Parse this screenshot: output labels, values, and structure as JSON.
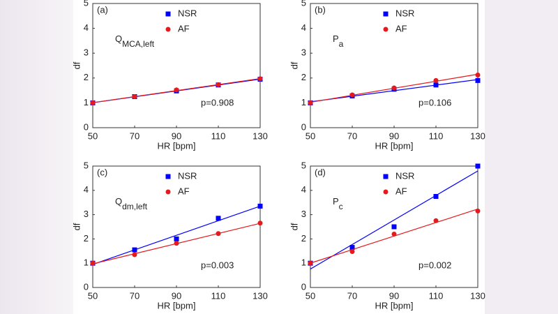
{
  "chart_data": [
    {
      "type": "scatter",
      "panel": "(a)",
      "label": "Q",
      "label_sub": "MCA,left",
      "annotation": "p=0.908",
      "x_label": "HR [bpm]",
      "y_label": "df",
      "x": [
        50,
        70,
        90,
        110,
        130
      ],
      "xlim": [
        50,
        130
      ],
      "xticks": [
        50,
        70,
        90,
        110,
        130
      ],
      "ylim": [
        0,
        5
      ],
      "yticks": [
        0,
        1,
        2,
        3,
        4,
        5
      ],
      "series": [
        {
          "name": "NSR",
          "color": "#0000ff",
          "marker": "square",
          "values": [
            1.0,
            1.25,
            1.48,
            1.72,
            1.95
          ]
        },
        {
          "name": "AF",
          "color": "#e41a1c",
          "marker": "circle",
          "values": [
            1.0,
            1.25,
            1.52,
            1.73,
            1.97
          ]
        }
      ]
    },
    {
      "type": "scatter",
      "panel": "(b)",
      "label": "P",
      "label_sub": "a",
      "annotation": "p=0.106",
      "x_label": "HR [bpm]",
      "y_label": "df",
      "x": [
        50,
        70,
        90,
        110,
        130
      ],
      "xlim": [
        50,
        130
      ],
      "xticks": [
        50,
        70,
        90,
        110,
        130
      ],
      "ylim": [
        0,
        5
      ],
      "yticks": [
        0,
        1,
        2,
        3,
        4,
        5
      ],
      "series": [
        {
          "name": "NSR",
          "color": "#0000ff",
          "marker": "square",
          "values": [
            1.0,
            1.28,
            1.55,
            1.72,
            1.9
          ]
        },
        {
          "name": "AF",
          "color": "#e41a1c",
          "marker": "circle",
          "values": [
            1.0,
            1.32,
            1.6,
            1.9,
            2.12
          ]
        }
      ]
    },
    {
      "type": "scatter",
      "panel": "(c)",
      "label": "Q",
      "label_sub": "dm,left",
      "annotation": "p=0.003",
      "x_label": "HR [bpm]",
      "y_label": "df",
      "x": [
        50,
        70,
        90,
        110,
        130
      ],
      "xlim": [
        50,
        130
      ],
      "xticks": [
        50,
        70,
        90,
        110,
        130
      ],
      "ylim": [
        0,
        5
      ],
      "yticks": [
        0,
        1,
        2,
        3,
        4,
        5
      ],
      "series": [
        {
          "name": "NSR",
          "color": "#0000ff",
          "marker": "square",
          "values": [
            1.0,
            1.55,
            2.0,
            2.85,
            3.35
          ]
        },
        {
          "name": "AF",
          "color": "#e41a1c",
          "marker": "circle",
          "values": [
            1.0,
            1.35,
            1.82,
            2.22,
            2.65
          ]
        }
      ]
    },
    {
      "type": "scatter",
      "panel": "(d)",
      "label": "P",
      "label_sub": "c",
      "annotation": "p=0.002",
      "x_label": "HR [bpm]",
      "y_label": "df",
      "x": [
        50,
        70,
        90,
        110,
        130
      ],
      "xlim": [
        50,
        130
      ],
      "xticks": [
        50,
        70,
        90,
        110,
        130
      ],
      "ylim": [
        0,
        5
      ],
      "yticks": [
        0,
        1,
        2,
        3,
        4,
        5
      ],
      "series": [
        {
          "name": "NSR",
          "color": "#0000ff",
          "marker": "square",
          "values": [
            1.0,
            1.65,
            2.5,
            3.75,
            5.0
          ]
        },
        {
          "name": "AF",
          "color": "#e41a1c",
          "marker": "circle",
          "values": [
            1.0,
            1.48,
            2.2,
            2.75,
            3.15
          ]
        }
      ]
    }
  ]
}
